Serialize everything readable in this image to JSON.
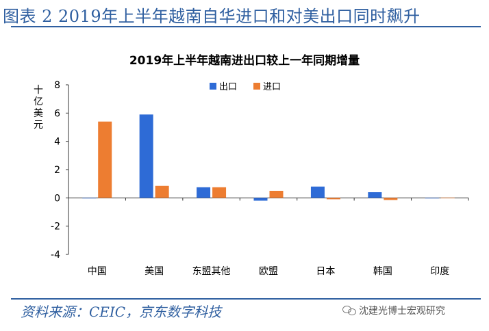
{
  "figure": {
    "caption": "图表 2 2019年上半年越南自华进口和对美出口同时飙升",
    "source": "资料来源：CEIC，京东数字科技",
    "watermark": "沈建光博士宏观研究"
  },
  "colors": {
    "export": "#2e6bd6",
    "import": "#ed7d31",
    "accent": "#2f5fa0"
  },
  "chart_data": {
    "type": "bar",
    "title": "2019年上半年越南进出口较上一年同期增量",
    "ylabel": "十亿美元",
    "xlabel": "",
    "categories": [
      "中国",
      "美国",
      "东盟其他",
      "欧盟",
      "日本",
      "韩国",
      "印度"
    ],
    "series": [
      {
        "name": "出口",
        "values": [
          0,
          5.9,
          0.75,
          -0.2,
          0.8,
          0.4,
          0
        ]
      },
      {
        "name": "进口",
        "values": [
          5.4,
          0.85,
          0.75,
          0.5,
          -0.1,
          -0.15,
          0.02
        ]
      }
    ],
    "ylim": [
      -4,
      8
    ],
    "yticks": [
      -4,
      -2,
      0,
      2,
      4,
      6,
      8
    ],
    "grid": false,
    "legend": "top-center"
  }
}
